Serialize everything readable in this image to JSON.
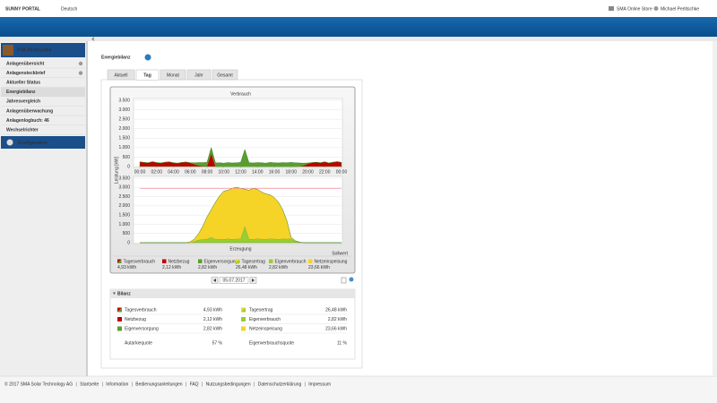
{
  "header": {
    "brand": "SUNNY PORTAL",
    "language": "Deutsch",
    "store": "SMA Online Store",
    "user": "Michael Perlitschke"
  },
  "sidebar": {
    "plant": "PVA-Perlitschke",
    "items": [
      "Anlagenübersicht",
      "Anlagensteckbrief",
      "Aktueller Status",
      "Energiebilanz",
      "Jahresvergleich",
      "Anlagenüberwachung",
      "Anlagenlogbuch: 46",
      "Wechselrichter"
    ],
    "selected": 3,
    "config": "Konfiguration"
  },
  "page_title": "Energiebilanz",
  "tabs": [
    "Aktuell",
    "Tag",
    "Monat",
    "Jahr",
    "Gesamt"
  ],
  "active_tab": 1,
  "chart_data": [
    {
      "type": "area",
      "title": "Verbrauch",
      "ylabel": "Leistung [kW]",
      "x": [
        0,
        0.5,
        1,
        1.5,
        2,
        2.5,
        3,
        3.5,
        4,
        4.5,
        5,
        5.5,
        6,
        6.5,
        7,
        7.5,
        8,
        8.5,
        9,
        9.5,
        10,
        10.5,
        11,
        11.5,
        12,
        12.5,
        13,
        13.5,
        14,
        14.5,
        15,
        15.5,
        16,
        16.5,
        17,
        17.5,
        18,
        18.5,
        19,
        19.5,
        20,
        20.5,
        21,
        21.5,
        22,
        22.5,
        23,
        23.5,
        24
      ],
      "xlim": [
        0,
        24
      ],
      "xticks": [
        {
          "value": 0,
          "label": "00:00"
        },
        {
          "value": 2,
          "label": "02:00"
        },
        {
          "value": 4,
          "label": "04:00"
        },
        {
          "value": 6,
          "label": "06:00"
        },
        {
          "value": 8,
          "label": "08:00"
        },
        {
          "value": 10,
          "label": "10:00"
        },
        {
          "value": 12,
          "label": "12:00"
        },
        {
          "value": 14,
          "label": "14:00"
        },
        {
          "value": 16,
          "label": "16:00"
        },
        {
          "value": 18,
          "label": "18:00"
        },
        {
          "value": 20,
          "label": "20:00"
        },
        {
          "value": 22,
          "label": "22:00"
        },
        {
          "value": 24,
          "label": "00:00"
        }
      ],
      "ylim": [
        0,
        3500
      ],
      "yticks": [
        {
          "value": 3500,
          "label": "3.500"
        },
        {
          "value": 3000,
          "label": "3.000"
        },
        {
          "value": 2500,
          "label": "2.500"
        },
        {
          "value": 2000,
          "label": "2.000"
        },
        {
          "value": 1500,
          "label": "1.500"
        },
        {
          "value": 1000,
          "label": "1.000"
        },
        500,
        0
      ],
      "grid": true,
      "series": [
        {
          "name": "Netzbezug",
          "color": "#c00000",
          "values": [
            250,
            220,
            200,
            260,
            210,
            190,
            230,
            250,
            200,
            180,
            220,
            240,
            200,
            120,
            60,
            30,
            20,
            700,
            0,
            0,
            0,
            0,
            0,
            0,
            0,
            0,
            0,
            0,
            0,
            0,
            0,
            0,
            0,
            0,
            0,
            0,
            0,
            0,
            10,
            60,
            150,
            210,
            230,
            200,
            250,
            190,
            230,
            260,
            220
          ]
        },
        {
          "name": "Eigenversorgung",
          "color": "#5a9e2f",
          "values": [
            0,
            0,
            0,
            0,
            0,
            0,
            0,
            0,
            0,
            0,
            0,
            0,
            0,
            80,
            150,
            180,
            200,
            300,
            190,
            200,
            180,
            210,
            190,
            200,
            220,
            900,
            200,
            190,
            210,
            200,
            180,
            220,
            200,
            190,
            210,
            200,
            220,
            200,
            180,
            120,
            40,
            0,
            0,
            0,
            0,
            0,
            0,
            0,
            0
          ]
        }
      ]
    },
    {
      "type": "area",
      "title": "Erzeugung",
      "x": [
        0,
        0.5,
        1,
        1.5,
        2,
        2.5,
        3,
        3.5,
        4,
        4.5,
        5,
        5.5,
        6,
        6.5,
        7,
        7.5,
        8,
        8.5,
        9,
        9.5,
        10,
        10.5,
        11,
        11.5,
        12,
        12.5,
        13,
        13.5,
        14,
        14.5,
        15,
        15.5,
        16,
        16.5,
        17,
        17.5,
        18,
        18.5,
        19,
        19.5,
        20,
        20.5,
        21,
        21.5,
        22,
        22.5,
        23,
        23.5,
        24
      ],
      "xlim": [
        0,
        24
      ],
      "ylim": [
        0,
        3500
      ],
      "yticks": [
        {
          "value": 3500,
          "label": "3.500"
        },
        {
          "value": 3000,
          "label": "3.000"
        },
        {
          "value": 2500,
          "label": "2.500"
        },
        {
          "value": 2000,
          "label": "2.000"
        },
        {
          "value": 1500,
          "label": "1.500"
        },
        {
          "value": 1000,
          "label": "1.000"
        },
        500,
        0
      ],
      "grid": true,
      "reference": {
        "label": "Sollwert",
        "value": 2950,
        "color": "#f08a9a"
      },
      "series": [
        {
          "name": "Eigenverbrauch",
          "color": "#9acd32",
          "values": [
            0,
            0,
            0,
            0,
            0,
            0,
            0,
            0,
            0,
            0,
            0,
            0,
            0,
            80,
            150,
            180,
            200,
            300,
            190,
            200,
            180,
            210,
            190,
            200,
            220,
            900,
            200,
            190,
            210,
            200,
            180,
            220,
            200,
            190,
            210,
            200,
            220,
            100,
            30,
            0,
            0,
            0,
            0,
            0,
            0,
            0,
            0,
            0,
            0
          ]
        },
        {
          "name": "Netzeinspeisung",
          "color": "#f5d327",
          "values": [
            0,
            0,
            0,
            0,
            0,
            0,
            0,
            0,
            0,
            0,
            0,
            0,
            50,
            120,
            350,
            720,
            1200,
            1500,
            2010,
            2350,
            2620,
            2640,
            2760,
            2800,
            2730,
            2000,
            2650,
            2760,
            2690,
            2550,
            2470,
            2380,
            2250,
            2010,
            1590,
            1000,
            80,
            0,
            0,
            0,
            0,
            0,
            0,
            0,
            0,
            0,
            0,
            0,
            0
          ]
        }
      ]
    }
  ],
  "legend": [
    {
      "name": "Tagesverbrauch",
      "value": "4,93 kWh",
      "color": [
        "#c00000",
        "#5a9e2f"
      ]
    },
    {
      "name": "Netzbezug",
      "value": "2,12 kWh",
      "color": [
        "#c00000"
      ]
    },
    {
      "name": "Eigenversorgung",
      "value": "2,82 kWh",
      "color": [
        "#5a9e2f"
      ]
    },
    {
      "name": "Tagesertrag",
      "value": "26,48 kWh",
      "color": [
        "#f5d327",
        "#9acd32"
      ]
    },
    {
      "name": "Eigenverbrauch",
      "value": "2,82 kWh",
      "color": [
        "#9acd32"
      ]
    },
    {
      "name": "Netzeinspeisung",
      "value": "23,66 kWh",
      "color": [
        "#f5d327"
      ]
    }
  ],
  "date": "05.07.2017",
  "bilanz": {
    "title": "Bilanz",
    "left": [
      {
        "name": "Tagesverbrauch",
        "value": "4,93 kWh",
        "color": [
          "#c00000",
          "#5a9e2f"
        ]
      },
      {
        "name": "Netzbezug",
        "value": "2,12 kWh",
        "color": [
          "#c00000"
        ]
      },
      {
        "name": "Eigenversorgung",
        "value": "2,82 kWh",
        "color": [
          "#5a9e2f"
        ]
      }
    ],
    "left_quote": {
      "name": "Autarkiequote",
      "value": "57 %"
    },
    "right": [
      {
        "name": "Tagesertrag",
        "value": "26,48 kWh",
        "color": [
          "#f5d327",
          "#9acd32"
        ]
      },
      {
        "name": "Eigenverbrauch",
        "value": "2,82 kWh",
        "color": [
          "#9acd32"
        ]
      },
      {
        "name": "Netzeinspeisung",
        "value": "23,66 kWh",
        "color": [
          "#f5d327"
        ]
      }
    ],
    "right_quote": {
      "name": "Eigenverbrauchsquote",
      "value": "11 %"
    }
  },
  "footer": [
    "© 2017 SMA Solar Technology AG",
    "Startseite",
    "Information",
    "Bedienungsanleitungen",
    "FAQ",
    "Nutzungsbedingungen",
    "Datenschutzerklärung",
    "Impressum"
  ]
}
